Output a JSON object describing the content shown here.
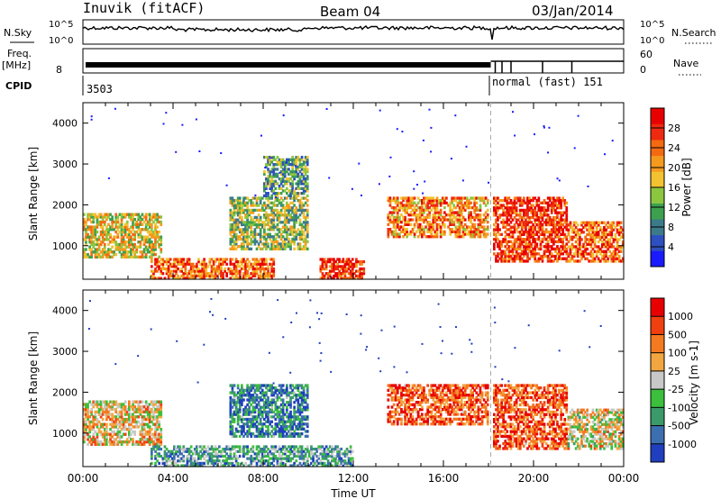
{
  "header": {
    "station": "Inuvik (fitACF)",
    "beam": "Beam 04",
    "date": "03/Jan/2014"
  },
  "top_panels": {
    "nsky_label": "N.Sky",
    "nsearch_label": "N.Search",
    "nsky_ticks": [
      "10^5",
      "10^0"
    ],
    "nsearch_ticks": [
      "10^5",
      "10^0"
    ],
    "freq_label_line1": "Freq.",
    "freq_label_line2": "[MHz]",
    "freq_ticks": [
      "8"
    ],
    "nave_label": "Nave",
    "nave_ticks": [
      "60",
      "0"
    ],
    "cpid_label": "CPID",
    "cpid_value_1": "3503",
    "cpid_value_2": "normal (fast) 151",
    "mode_switch_time_hours": 18.1
  },
  "chart_data": [
    {
      "type": "heatmap",
      "name": "power-panel",
      "xlabel": "",
      "ylabel": "Slant Range [km]",
      "xlim_hours": [
        0,
        24
      ],
      "ylim_km": [
        180,
        4500
      ],
      "yticks": [
        "1000",
        "2000",
        "3000",
        "4000"
      ],
      "colorbar": {
        "label": "Power [dB]",
        "ticks": [
          "28",
          "24",
          "20",
          "16",
          "12",
          "8",
          "4"
        ],
        "colors": [
          "#1a1aff",
          "#2e4fbf",
          "#3c7a8a",
          "#3da04f",
          "#8cc63f",
          "#f2c230",
          "#f59a1e",
          "#f46a10",
          "#ee2a10",
          "#e80000"
        ]
      },
      "echo_bands": [
        {
          "t0": 0.0,
          "t1": 3.5,
          "r0": 700,
          "r1": 1800,
          "level": 0.55
        },
        {
          "t0": 3.0,
          "t1": 8.5,
          "r0": 180,
          "r1": 700,
          "level": 0.75
        },
        {
          "t0": 6.5,
          "t1": 10.0,
          "r0": 900,
          "r1": 2200,
          "level": 0.45
        },
        {
          "t0": 8.0,
          "t1": 10.0,
          "r0": 2200,
          "r1": 3200,
          "level": 0.35
        },
        {
          "t0": 10.5,
          "t1": 12.5,
          "r0": 180,
          "r1": 700,
          "level": 0.9
        },
        {
          "t0": 13.5,
          "t1": 18.0,
          "r0": 1200,
          "r1": 2200,
          "level": 0.7
        },
        {
          "t0": 18.2,
          "t1": 21.5,
          "r0": 600,
          "r1": 2200,
          "level": 0.85
        },
        {
          "t0": 21.5,
          "t1": 24.0,
          "r0": 600,
          "r1": 1600,
          "level": 0.75
        }
      ]
    },
    {
      "type": "heatmap",
      "name": "velocity-panel",
      "xlabel": "Time UT",
      "ylabel": "Slant Range [km]",
      "xlim_hours": [
        0,
        24
      ],
      "ylim_km": [
        180,
        4500
      ],
      "xticks": [
        "00:00",
        "04:00",
        "08:00",
        "12:00",
        "16:00",
        "20:00",
        "00:00"
      ],
      "yticks": [
        "1000",
        "2000",
        "3000",
        "4000"
      ],
      "colorbar": {
        "label": "Velocity [m s-1]",
        "ticks": [
          "1000",
          "500",
          "100",
          "25",
          "-25",
          "-100",
          "-500",
          "-1000"
        ],
        "colors": [
          "#1f3fbf",
          "#3c6fb0",
          "#3a9a6a",
          "#3cbf3c",
          "#c8c8c8",
          "#f2a640",
          "#f47a20",
          "#f04010",
          "#e80000"
        ]
      },
      "echo_bands": [
        {
          "t0": 0.0,
          "t1": 3.5,
          "r0": 700,
          "r1": 1800,
          "level": 0.6
        },
        {
          "t0": 3.0,
          "t1": 12.0,
          "r0": 180,
          "r1": 700,
          "level": 0.3
        },
        {
          "t0": 6.5,
          "t1": 10.0,
          "r0": 900,
          "r1": 2200,
          "level": 0.2
        },
        {
          "t0": 13.5,
          "t1": 18.0,
          "r0": 1200,
          "r1": 2200,
          "level": 0.8
        },
        {
          "t0": 18.2,
          "t1": 21.5,
          "r0": 600,
          "r1": 2200,
          "level": 0.8
        },
        {
          "t0": 21.5,
          "t1": 24.0,
          "r0": 600,
          "r1": 1600,
          "level": 0.55
        }
      ]
    }
  ]
}
